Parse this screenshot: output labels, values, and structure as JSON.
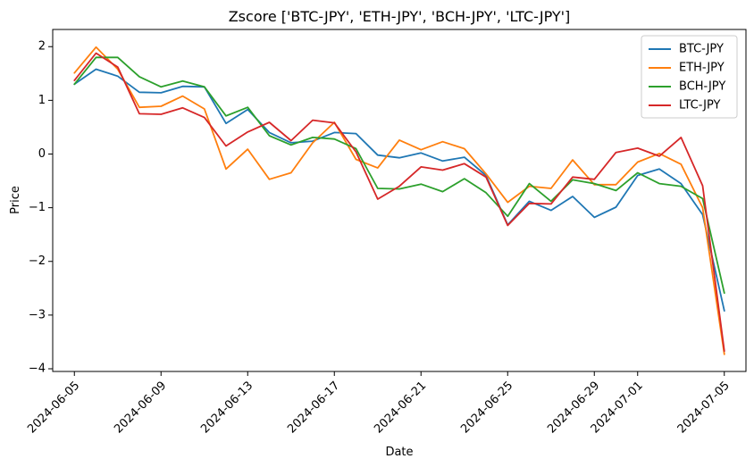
{
  "chart_data": {
    "type": "line",
    "title": "Zscore ['BTC-JPY', 'ETH-JPY', 'BCH-JPY', 'LTC-JPY']",
    "xlabel": "Date",
    "ylabel": "Price",
    "x": [
      "2024-06-05",
      "2024-06-06",
      "2024-06-07",
      "2024-06-08",
      "2024-06-09",
      "2024-06-10",
      "2024-06-11",
      "2024-06-12",
      "2024-06-13",
      "2024-06-14",
      "2024-06-15",
      "2024-06-16",
      "2024-06-17",
      "2024-06-18",
      "2024-06-19",
      "2024-06-20",
      "2024-06-21",
      "2024-06-22",
      "2024-06-23",
      "2024-06-24",
      "2024-06-25",
      "2024-06-26",
      "2024-06-27",
      "2024-06-28",
      "2024-06-29",
      "2024-06-30",
      "2024-07-01",
      "2024-07-02",
      "2024-07-03",
      "2024-07-04",
      "2024-07-05"
    ],
    "x_ticks": [
      "2024-06-05",
      "2024-06-09",
      "2024-06-13",
      "2024-06-17",
      "2024-06-21",
      "2024-06-25",
      "2024-06-29",
      "2024-07-01",
      "2024-07-05"
    ],
    "x_tick_labels": [
      "2024-06-05",
      "2024-06-09",
      "2024-06-13",
      "2024-06-17",
      "2024-06-21",
      "2024-06-25",
      "2024-06-29",
      "2024-07-01",
      "2024-07-05"
    ],
    "y_ticks": [
      -4,
      -3,
      -2,
      -1,
      0,
      1,
      2
    ],
    "y_tick_labels": [
      "−4",
      "−3",
      "−2",
      "−1",
      "0",
      "1",
      "2"
    ],
    "xlim": [
      "2024-06-04",
      "2024-07-06"
    ],
    "ylim": [
      -4.05,
      2.32
    ],
    "grid": false,
    "legend_position": "top-right",
    "series": [
      {
        "name": "BTC-JPY",
        "color": "#1f77b4",
        "values": [
          1.3,
          1.58,
          1.45,
          1.15,
          1.14,
          1.26,
          1.25,
          0.57,
          0.83,
          0.4,
          0.21,
          0.24,
          0.4,
          0.38,
          -0.02,
          -0.07,
          0.02,
          -0.13,
          -0.06,
          -0.4,
          -1.32,
          -0.88,
          -1.05,
          -0.79,
          -1.18,
          -0.99,
          -0.4,
          -0.28,
          -0.55,
          -1.13,
          -2.92
        ]
      },
      {
        "name": "ETH-JPY",
        "color": "#ff7f0e",
        "values": [
          1.51,
          1.99,
          1.58,
          0.87,
          0.89,
          1.08,
          0.84,
          -0.28,
          0.09,
          -0.47,
          -0.35,
          0.21,
          0.59,
          -0.1,
          -0.26,
          0.26,
          0.08,
          0.23,
          0.1,
          -0.37,
          -0.9,
          -0.6,
          -0.64,
          -0.11,
          -0.57,
          -0.57,
          -0.15,
          0.01,
          -0.19,
          -1.0,
          -3.73
        ]
      },
      {
        "name": "BCH-JPY",
        "color": "#2ca02c",
        "values": [
          1.3,
          1.8,
          1.8,
          1.44,
          1.25,
          1.36,
          1.25,
          0.71,
          0.87,
          0.34,
          0.17,
          0.31,
          0.28,
          0.1,
          -0.64,
          -0.65,
          -0.56,
          -0.7,
          -0.46,
          -0.72,
          -1.16,
          -0.55,
          -0.88,
          -0.48,
          -0.55,
          -0.68,
          -0.35,
          -0.55,
          -0.6,
          -0.83,
          -2.59
        ]
      },
      {
        "name": "LTC-JPY",
        "color": "#d62728",
        "values": [
          1.37,
          1.88,
          1.62,
          0.75,
          0.74,
          0.86,
          0.68,
          0.15,
          0.41,
          0.59,
          0.25,
          0.63,
          0.58,
          0.04,
          -0.84,
          -0.6,
          -0.24,
          -0.3,
          -0.18,
          -0.43,
          -1.33,
          -0.92,
          -0.93,
          -0.43,
          -0.47,
          0.03,
          0.11,
          -0.04,
          0.31,
          -0.59,
          -3.67
        ]
      }
    ]
  }
}
